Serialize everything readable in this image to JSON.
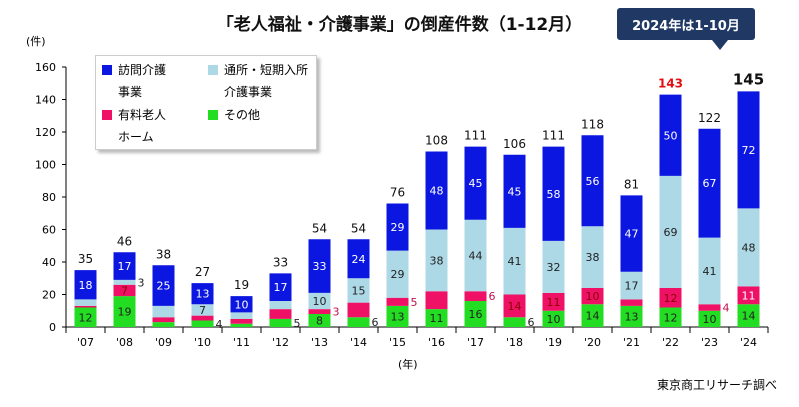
{
  "title": "「老人福祉・介護事業」の倒産件数（1-12月）",
  "badge": "2024年は1-10月",
  "source": "東京商工リサーチ調べ",
  "chart_data": {
    "type": "bar",
    "stacked": true,
    "title": "「老人福祉・介護事業」の倒産件数（1-12月）",
    "ylabel": "(件)",
    "xlabel": "(年)",
    "ylim": [
      0,
      160
    ],
    "yticks": [
      0,
      20,
      40,
      60,
      80,
      100,
      120,
      140,
      160
    ],
    "categories": [
      "'07",
      "'08",
      "'09",
      "'10",
      "'11",
      "'12",
      "'13",
      "'14",
      "'15",
      "'16",
      "'17",
      "'18",
      "'19",
      "'20",
      "'21",
      "'22",
      "'23",
      "'24"
    ],
    "legend_placement": "top-left",
    "series": [
      {
        "name": "その他",
        "color": "#22dd22",
        "values": [
          12,
          19,
          3,
          4,
          2,
          5,
          8,
          6,
          13,
          11,
          16,
          6,
          10,
          14,
          13,
          12,
          10,
          14
        ],
        "labels": [
          12,
          19,
          null,
          4,
          null,
          5,
          8,
          6,
          13,
          11,
          16,
          6,
          10,
          14,
          13,
          12,
          10,
          14
        ]
      },
      {
        "name": "有料老人ホーム",
        "color": "#ee1166",
        "values": [
          1,
          7,
          3,
          3,
          3,
          6,
          3,
          9,
          5,
          11,
          6,
          14,
          11,
          10,
          4,
          12,
          4,
          11
        ],
        "labels": [
          null,
          7,
          null,
          null,
          null,
          null,
          3,
          null,
          5,
          null,
          6,
          14,
          11,
          10,
          null,
          12,
          4,
          11
        ]
      },
      {
        "name": "通所・短期入所介護事業",
        "color": "#add8e6",
        "values": [
          4,
          3,
          7,
          7,
          4,
          5,
          10,
          15,
          29,
          38,
          44,
          41,
          32,
          38,
          17,
          69,
          41,
          48
        ],
        "labels": [
          null,
          3,
          null,
          7,
          null,
          null,
          10,
          15,
          29,
          38,
          44,
          41,
          32,
          38,
          17,
          69,
          41,
          48
        ]
      },
      {
        "name": "訪問介護事業",
        "color": "#0b16e0",
        "values": [
          18,
          17,
          25,
          13,
          10,
          17,
          33,
          24,
          29,
          48,
          45,
          45,
          58,
          56,
          47,
          50,
          67,
          72
        ],
        "labels": [
          18,
          17,
          25,
          13,
          10,
          17,
          33,
          24,
          29,
          48,
          45,
          45,
          58,
          56,
          47,
          50,
          67,
          72
        ]
      }
    ],
    "totals": [
      35,
      46,
      38,
      27,
      19,
      33,
      54,
      54,
      76,
      108,
      111,
      106,
      111,
      118,
      81,
      143,
      122,
      145
    ],
    "highlight_totals": {
      "143": "#e31010",
      "145": "bold"
    },
    "legend": [
      {
        "line1": "訪問介護",
        "line2": "事業",
        "color": "#0b16e0"
      },
      {
        "line1": "通所・短期入所",
        "line2": "介護事業",
        "color": "#add8e6"
      },
      {
        "line1": "有料老人",
        "line2": "ホーム",
        "color": "#ee1166"
      },
      {
        "line1": "その他",
        "line2": "",
        "color": "#22dd22"
      }
    ]
  }
}
